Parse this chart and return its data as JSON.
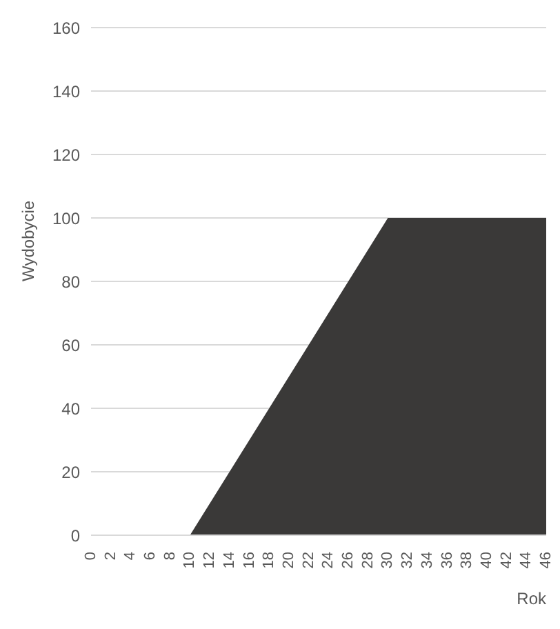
{
  "chart_data": {
    "type": "area",
    "xlabel": "Rok",
    "ylabel": "Wydobycie",
    "x": [
      0,
      10,
      30,
      46
    ],
    "series": [
      {
        "color": "#3a3938",
        "values": [
          0,
          0,
          100,
          100
        ]
      }
    ],
    "xlim": [
      0,
      46
    ],
    "xticks": [
      0,
      2,
      4,
      6,
      8,
      10,
      12,
      14,
      16,
      18,
      20,
      22,
      24,
      26,
      28,
      30,
      32,
      34,
      36,
      38,
      40,
      42,
      44,
      46
    ],
    "ylim": [
      0,
      160
    ],
    "yticks": [
      0,
      20,
      40,
      60,
      80,
      100,
      120,
      140,
      160
    ],
    "grid": "y",
    "legend": false
  }
}
